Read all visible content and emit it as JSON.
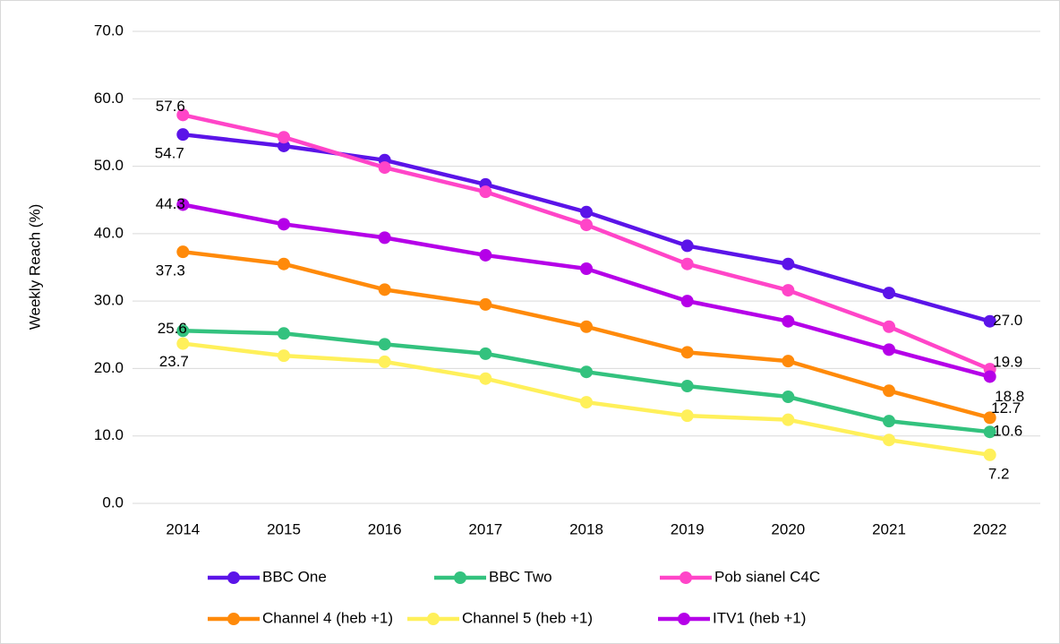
{
  "chart_data": {
    "type": "line",
    "y_label": "Weekly Reach (%)",
    "categories": [
      "2014",
      "2015",
      "2016",
      "2017",
      "2018",
      "2019",
      "2020",
      "2021",
      "2022"
    ],
    "ylim": [
      0,
      70
    ],
    "yticks": [
      {
        "value": 0,
        "label": "0.0"
      },
      {
        "value": 10,
        "label": "10.0"
      },
      {
        "value": 20,
        "label": "20.0"
      },
      {
        "value": 30,
        "label": "30.0"
      },
      {
        "value": 40,
        "label": "40.0"
      },
      {
        "value": 50,
        "label": "50.0"
      },
      {
        "value": 60,
        "label": "60.0"
      },
      {
        "value": 70,
        "label": "70.0"
      }
    ],
    "grid": true,
    "legend": "bottom",
    "series": [
      {
        "name": "BBC One",
        "color": "#5b14e8",
        "values": [
          54.7,
          53.0,
          50.9,
          47.3,
          43.2,
          38.2,
          35.5,
          31.2,
          27.0
        ],
        "value_labels": [
          "54.7",
          null,
          null,
          null,
          null,
          null,
          null,
          null,
          "27.0"
        ]
      },
      {
        "name": "BBC Two",
        "color": "#33c27e",
        "values": [
          25.6,
          25.2,
          23.6,
          22.2,
          19.5,
          17.4,
          15.8,
          12.2,
          10.6
        ],
        "value_labels": [
          "25.6",
          null,
          null,
          null,
          null,
          null,
          null,
          null,
          "10.6"
        ]
      },
      {
        "name": "Pob sianel C4C",
        "color": "#ff45c8",
        "values": [
          57.6,
          54.3,
          49.8,
          46.2,
          41.3,
          35.5,
          31.6,
          26.2,
          19.9
        ],
        "value_labels": [
          "57.6",
          null,
          null,
          null,
          null,
          null,
          null,
          null,
          "19.9"
        ]
      },
      {
        "name": "Channel 4 (heb +1)",
        "color": "#ff8a0a",
        "values": [
          37.3,
          35.5,
          31.7,
          29.5,
          26.2,
          22.4,
          21.1,
          16.7,
          12.7
        ],
        "value_labels": [
          "37.3",
          null,
          null,
          null,
          null,
          null,
          null,
          null,
          "12.7"
        ]
      },
      {
        "name": "Channel 5 (heb +1)",
        "color": "#fff05a",
        "values": [
          23.7,
          21.9,
          21.0,
          18.5,
          15.0,
          13.0,
          12.4,
          9.4,
          7.2
        ],
        "value_labels": [
          "23.7",
          null,
          null,
          null,
          null,
          null,
          null,
          null,
          "7.2"
        ]
      },
      {
        "name": "ITV1 (heb +1)",
        "color": "#b500e8",
        "values": [
          44.3,
          41.4,
          39.4,
          36.8,
          34.8,
          30.0,
          27.0,
          22.8,
          18.8
        ],
        "value_labels": [
          "44.3",
          null,
          null,
          null,
          null,
          null,
          null,
          null,
          "18.8"
        ]
      }
    ]
  }
}
